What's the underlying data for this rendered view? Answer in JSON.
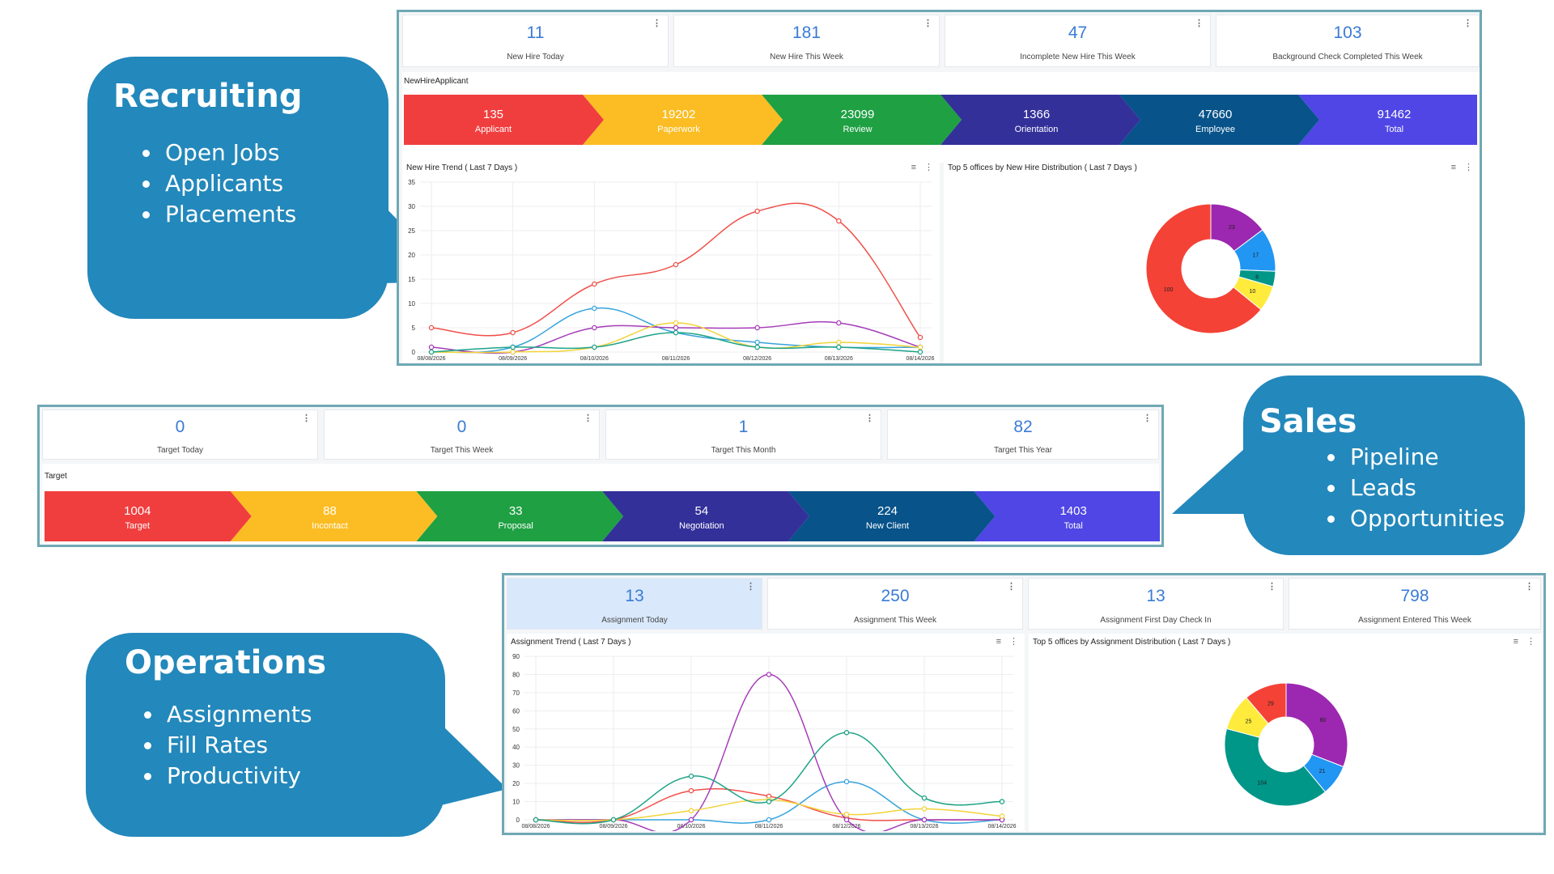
{
  "callouts": {
    "recruiting": {
      "title": "Recruiting",
      "items": [
        "Open Jobs",
        "Applicants",
        "Placements"
      ]
    },
    "sales": {
      "title": "Sales",
      "items": [
        "Pipeline",
        "Leads",
        "Opportunities"
      ]
    },
    "operations": {
      "title": "Operations",
      "items": [
        "Assignments",
        "Fill Rates",
        "Productivity"
      ]
    }
  },
  "recruiting": {
    "kpis": [
      {
        "value": "11",
        "label": "New Hire Today"
      },
      {
        "value": "181",
        "label": "New Hire This Week"
      },
      {
        "value": "47",
        "label": "Incomplete New Hire This Week"
      },
      {
        "value": "103",
        "label": "Background Check Completed This Week"
      }
    ],
    "funnel_title": "NewHireApplicant",
    "funnel": [
      {
        "value": "135",
        "label": "Applicant",
        "color": "#f03e3e"
      },
      {
        "value": "19202",
        "label": "Paperwork",
        "color": "#fbbd23"
      },
      {
        "value": "23099",
        "label": "Review",
        "color": "#1fa043"
      },
      {
        "value": "1366",
        "label": "Orientation",
        "color": "#33309a"
      },
      {
        "value": "47660",
        "label": "Employee",
        "color": "#07538a"
      },
      {
        "value": "91462",
        "label": "Total",
        "color": "#4f46e5"
      }
    ],
    "trend_title": "New Hire Trend ( Last 7 Days )",
    "pie_title": "Top 5 offices by New Hire Distribution ( Last 7 Days )"
  },
  "sales": {
    "kpis": [
      {
        "value": "0",
        "label": "Target Today"
      },
      {
        "value": "0",
        "label": "Target This Week"
      },
      {
        "value": "1",
        "label": "Target This Month"
      },
      {
        "value": "82",
        "label": "Target This Year"
      }
    ],
    "funnel_title": "Target",
    "funnel": [
      {
        "value": "1004",
        "label": "Target",
        "color": "#f03e3e"
      },
      {
        "value": "88",
        "label": "Incontact",
        "color": "#fbbd23"
      },
      {
        "value": "33",
        "label": "Proposal",
        "color": "#1fa043"
      },
      {
        "value": "54",
        "label": "Negotiation",
        "color": "#33309a"
      },
      {
        "value": "224",
        "label": "New Client",
        "color": "#07538a"
      },
      {
        "value": "1403",
        "label": "Total",
        "color": "#4f46e5"
      }
    ]
  },
  "operations": {
    "kpis": [
      {
        "value": "13",
        "label": "Assignment Today"
      },
      {
        "value": "250",
        "label": "Assignment This Week"
      },
      {
        "value": "13",
        "label": "Assignment First Day Check In"
      },
      {
        "value": "798",
        "label": "Assignment Entered This Week"
      }
    ],
    "trend_title": "Assignment Trend ( Last 7 Days )",
    "pie_title": "Top 5 offices by Assignment Distribution ( Last 7 Days )"
  },
  "chart_data": [
    {
      "type": "line",
      "x": [
        "08/08/2026",
        "08/09/2026",
        "08/10/2026",
        "08/11/2026",
        "08/12/2026",
        "08/13/2026",
        "08/14/2026"
      ],
      "ylim": [
        0,
        35
      ],
      "yticks": [
        0,
        5,
        10,
        15,
        20,
        25,
        30,
        35
      ],
      "grid": true,
      "series": [
        {
          "color": "#f0504a",
          "values": [
            5,
            4,
            14,
            18,
            29,
            27,
            3
          ]
        },
        {
          "color": "#36a3dc",
          "values": [
            0,
            1,
            9,
            4,
            2,
            1,
            1
          ]
        },
        {
          "color": "#a53cb8",
          "values": [
            1,
            0,
            5,
            5,
            5,
            6,
            1
          ]
        },
        {
          "color": "#f2d33a",
          "values": [
            0,
            0,
            1,
            6,
            1,
            2,
            1
          ]
        },
        {
          "color": "#1ea388",
          "values": [
            0,
            1,
            1,
            4,
            1,
            1,
            0
          ]
        }
      ]
    },
    {
      "type": "pie",
      "slices": [
        {
          "value": 100,
          "label": "100",
          "color": "#f44236"
        },
        {
          "value": 23,
          "label": "23",
          "color": "#9c27b0"
        },
        {
          "value": 17,
          "label": "17",
          "color": "#2196f3"
        },
        {
          "value": 6,
          "label": "6",
          "color": "#009688"
        },
        {
          "value": 10,
          "label": "10",
          "color": "#ffeb3b"
        }
      ],
      "start_slice": 1
    },
    {
      "type": "line",
      "x": [
        "08/08/2026",
        "08/09/2026",
        "08/10/2026",
        "08/11/2026",
        "08/12/2026",
        "08/13/2026",
        "08/14/2026"
      ],
      "ylim": [
        0,
        90
      ],
      "yticks": [
        0,
        10,
        20,
        30,
        40,
        50,
        60,
        70,
        80,
        90
      ],
      "grid": true,
      "series": [
        {
          "color": "#f0504a",
          "values": [
            0,
            0,
            16,
            13,
            1,
            0,
            0
          ]
        },
        {
          "color": "#36a3dc",
          "values": [
            0,
            0,
            0,
            0,
            21,
            0,
            0
          ]
        },
        {
          "color": "#a53cb8",
          "values": [
            0,
            0,
            0,
            80,
            0,
            0,
            0
          ]
        },
        {
          "color": "#f2d33a",
          "values": [
            0,
            0,
            5,
            11,
            3,
            6,
            2
          ]
        },
        {
          "color": "#1ea388",
          "values": [
            0,
            0,
            24,
            10,
            48,
            12,
            10
          ]
        }
      ]
    },
    {
      "type": "pie",
      "slices": [
        {
          "value": 80,
          "label": "80",
          "color": "#9c27b0"
        },
        {
          "value": 21,
          "label": "21",
          "color": "#2196f3"
        },
        {
          "value": 104,
          "label": "104",
          "color": "#009688"
        },
        {
          "value": 25,
          "label": "25",
          "color": "#ffeb3b"
        },
        {
          "value": 29,
          "label": "29",
          "color": "#f44236"
        }
      ],
      "start_slice": 0
    }
  ]
}
